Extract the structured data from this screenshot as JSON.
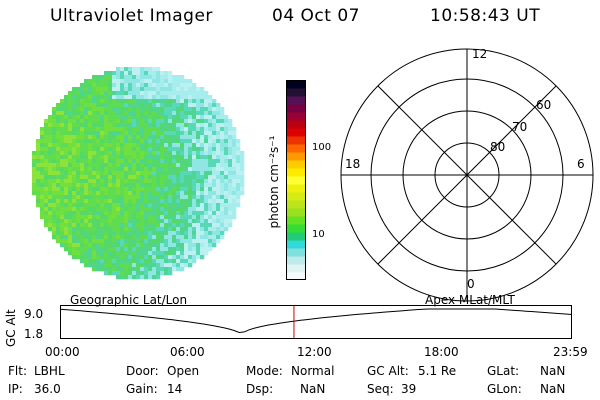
{
  "header": {
    "instrument": "Ultraviolet Imager",
    "date": "04 Oct 07",
    "time": "10:58:43 UT"
  },
  "colorbar": {
    "unit_label": "photon cm⁻²s⁻¹",
    "tick_100": "100",
    "tick_10": "10",
    "colors": [
      "#f5fbfb",
      "#e0f4f4",
      "#bfeaea",
      "#7fe0e0",
      "#33d9d9",
      "#22cc77",
      "#33dd33",
      "#66e022",
      "#99e01f",
      "#bbe51a",
      "#d6ea14",
      "#eef010",
      "#ffff33",
      "#ffeb00",
      "#ffcc00",
      "#ff9900",
      "#ff6600",
      "#ee3300",
      "#dd0000",
      "#bb0011",
      "#990033",
      "#770044",
      "#551155",
      "#221133",
      "#000022"
    ]
  },
  "globe": {
    "colors": [
      "#7fe23a",
      "#8ee33a",
      "#70df40",
      "#5fdc50",
      "#55d86a",
      "#4fd58f",
      "#58d8b6",
      "#8fe6e3",
      "#bdf0f0",
      "#a8eded"
    ]
  },
  "polar": {
    "labels": {
      "top": "12",
      "bottom": "0",
      "left": "18",
      "right": "6",
      "r60": "60",
      "r70": "70",
      "r80": "80"
    }
  },
  "timeline": {
    "left_caption": "Geographic Lat/Lon",
    "right_caption": "Apex MLat/MLT",
    "axis_title": "GC Alt",
    "y_top": "9.0",
    "y_bottom": "1.8",
    "ticks": [
      "00:00",
      "06:00",
      "12:00",
      "18:00",
      "23:59"
    ],
    "marker_color": "#cc0000"
  },
  "status": {
    "flt_label": "Flt:",
    "flt_value": "LBHL",
    "ip_label": "IP:",
    "ip_value": "36.0",
    "door_label": "Door:",
    "door_value": "Open",
    "gain_label": "Gain:",
    "gain_value": "14",
    "mode_label": "Mode:",
    "mode_value": "Normal",
    "dsp_label": "Dsp:",
    "dsp_value": "NaN",
    "gcalt_label": "GC Alt:",
    "gcalt_value": "5.1 Re",
    "seq_label": "Seq:",
    "seq_value": "39",
    "glat_label": "GLat:",
    "glat_value": "NaN",
    "glon_label": "GLon:",
    "glon_value": "NaN"
  }
}
